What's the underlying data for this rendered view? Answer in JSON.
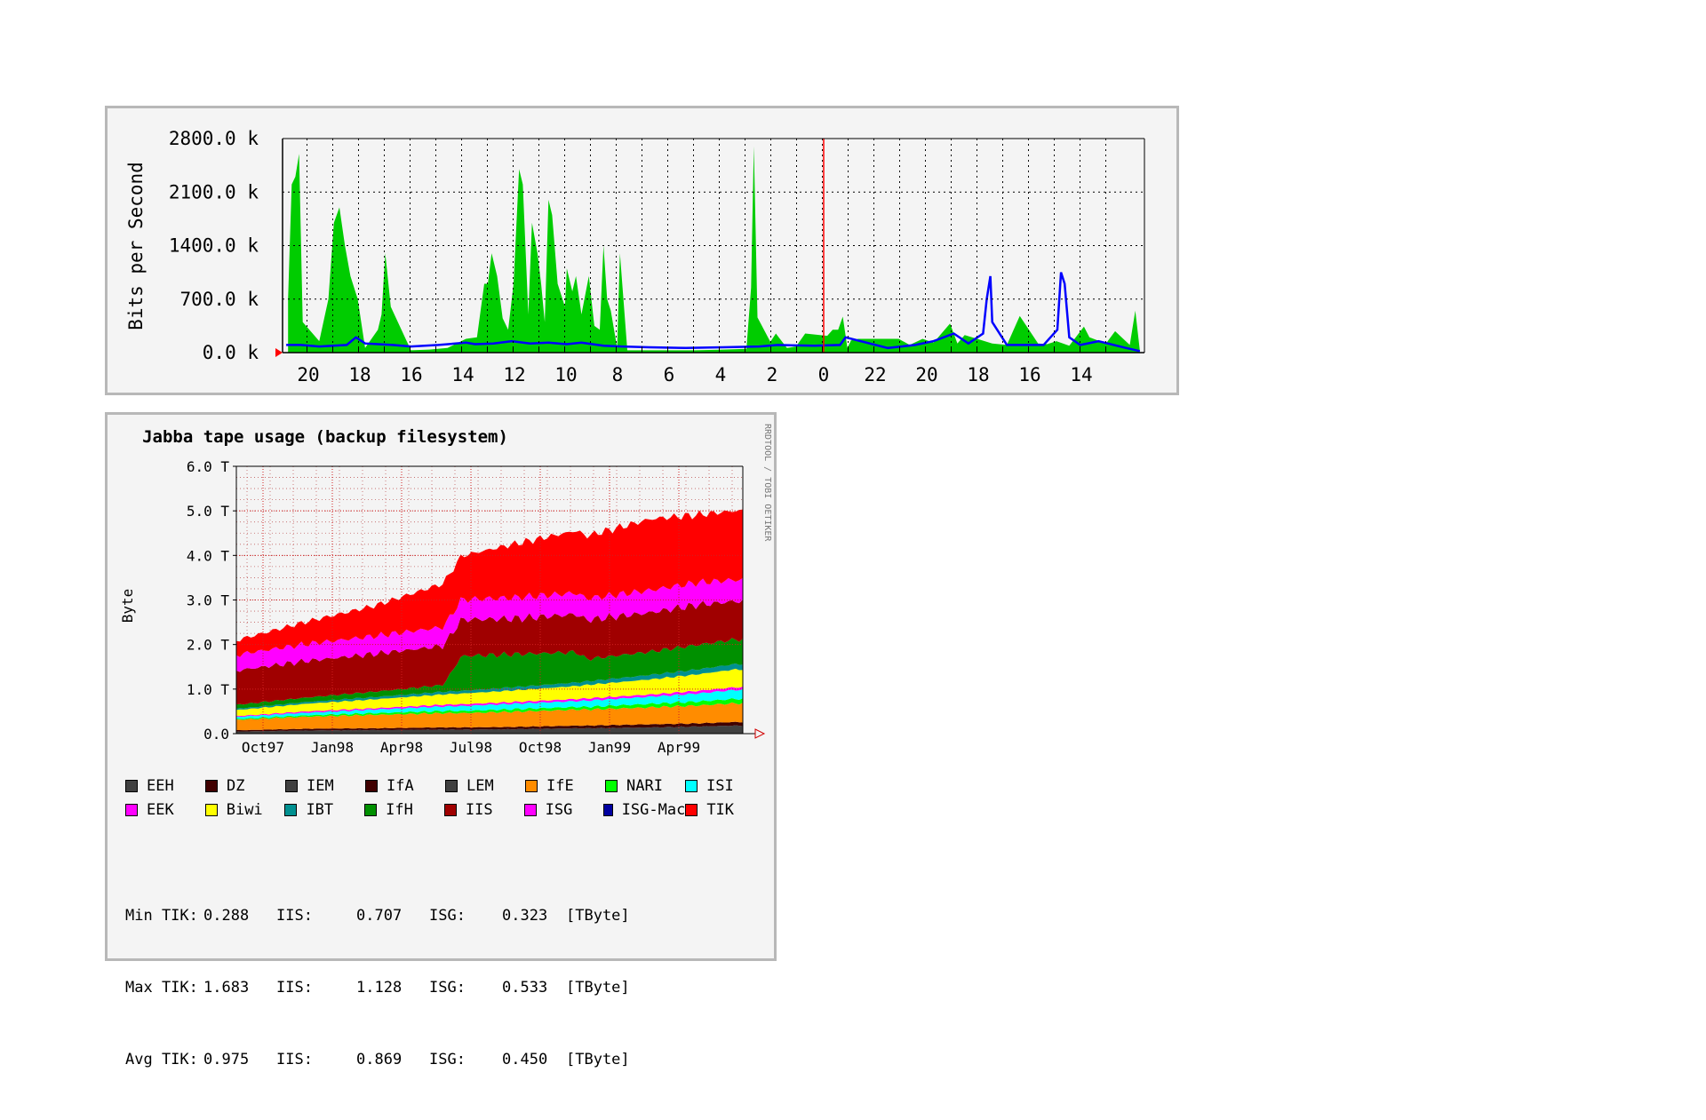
{
  "chart_data": [
    {
      "type": "area",
      "ylabel": "Bits per Second",
      "ylim": [
        0,
        2800
      ],
      "y_ticks": [
        "0.0 k",
        "700.0 k",
        "1400.0 k",
        "2100.0 k",
        "2800.0 k"
      ],
      "x_ticks": [
        "20",
        "18",
        "16",
        "14",
        "12",
        "10",
        "8",
        "6",
        "4",
        "2",
        "0",
        "22",
        "20",
        "18",
        "16",
        "14"
      ],
      "grid": true,
      "colors": {
        "in": "#00cc00",
        "out": "#0000ff",
        "now_marker": "#ff0000"
      },
      "series": [
        {
          "values": [
            [
              0.25,
              30
            ],
            [
              0.5,
              550
            ],
            [
              0.8,
              100
            ],
            [
              1.6,
              280
            ],
            [
              2.1,
              120
            ],
            [
              3.0,
              200
            ],
            [
              3.3,
              340
            ],
            [
              4.1,
              90
            ],
            [
              4.8,
              150
            ],
            [
              5.3,
              110
            ],
            [
              5.8,
              120
            ],
            [
              6.8,
              480
            ],
            [
              7.5,
              100
            ],
            [
              8.3,
              120
            ],
            [
              9.8,
              230
            ],
            [
              10.2,
              120
            ],
            [
              10.6,
              380
            ],
            [
              11.5,
              130
            ],
            [
              12.1,
              180
            ],
            [
              12.8,
              100
            ],
            [
              13.4,
              180
            ],
            [
              15.6,
              180
            ],
            [
              16.0,
              160
            ],
            [
              16.2,
              60
            ],
            [
              16.45,
              470
            ],
            [
              16.7,
              300
            ],
            [
              17.0,
              300
            ],
            [
              17.3,
              220
            ],
            [
              18.5,
              250
            ],
            [
              19.0,
              80
            ],
            [
              19.5,
              60
            ],
            [
              20.1,
              250
            ],
            [
              20.4,
              140
            ],
            [
              21.1,
              460
            ],
            [
              21.3,
              2700
            ],
            [
              21.45,
              850
            ],
            [
              21.7,
              50
            ],
            [
              23.0,
              40
            ],
            [
              24.5,
              30
            ],
            [
              26.0,
              30
            ],
            [
              27.0,
              30
            ],
            [
              28.2,
              30
            ],
            [
              28.6,
              1300
            ],
            [
              28.75,
              60
            ],
            [
              29.1,
              550
            ],
            [
              29.3,
              700
            ],
            [
              29.5,
              1400
            ],
            [
              29.7,
              300
            ],
            [
              30.0,
              350
            ],
            [
              30.3,
              1000
            ],
            [
              30.7,
              500
            ],
            [
              31.0,
              1000
            ],
            [
              31.2,
              800
            ],
            [
              31.5,
              1100
            ],
            [
              31.6,
              600
            ],
            [
              32.0,
              900
            ],
            [
              32.3,
              1800
            ],
            [
              32.5,
              2000
            ],
            [
              32.7,
              400
            ],
            [
              32.9,
              900
            ],
            [
              33.1,
              1300
            ],
            [
              33.4,
              1700
            ],
            [
              33.6,
              500
            ],
            [
              33.9,
              2200
            ],
            [
              34.1,
              2400
            ],
            [
              34.4,
              900
            ],
            [
              34.7,
              300
            ],
            [
              35.0,
              450
            ],
            [
              35.3,
              1000
            ],
            [
              35.6,
              1300
            ],
            [
              35.8,
              900
            ],
            [
              36.0,
              900
            ],
            [
              36.4,
              200
            ],
            [
              37.0,
              180
            ],
            [
              38.0,
              60
            ],
            [
              39.0,
              40
            ],
            [
              40.0,
              30
            ],
            [
              41.1,
              600
            ],
            [
              41.4,
              1300
            ],
            [
              41.6,
              500
            ],
            [
              41.8,
              300
            ],
            [
              42.5,
              60
            ],
            [
              42.9,
              700
            ],
            [
              43.3,
              1000
            ],
            [
              43.6,
              1400
            ],
            [
              43.9,
              1900
            ],
            [
              44.2,
              1700
            ],
            [
              44.5,
              700
            ],
            [
              45.0,
              150
            ],
            [
              45.9,
              400
            ],
            [
              46.1,
              2600
            ],
            [
              46.3,
              2300
            ],
            [
              46.5,
              2200
            ],
            [
              46.7,
              700
            ]
          ]
        },
        {
          "values": [
            [
              0.25,
              20
            ],
            [
              1.0,
              60
            ],
            [
              2.5,
              150
            ],
            [
              3.5,
              100
            ],
            [
              4.1,
              200
            ],
            [
              4.35,
              900
            ],
            [
              4.55,
              1050
            ],
            [
              4.75,
              300
            ],
            [
              5.5,
              100
            ],
            [
              7.5,
              100
            ],
            [
              8.3,
              400
            ],
            [
              8.4,
              1000
            ],
            [
              8.6,
              700
            ],
            [
              8.8,
              250
            ],
            [
              9.6,
              120
            ],
            [
              10.4,
              250
            ],
            [
              11.5,
              150
            ],
            [
              12.5,
              100
            ],
            [
              14.0,
              60
            ],
            [
              16.3,
              200
            ],
            [
              16.6,
              100
            ],
            [
              18.0,
              90
            ],
            [
              20.0,
              100
            ],
            [
              21.0,
              80
            ],
            [
              23.0,
              70
            ],
            [
              25.0,
              60
            ],
            [
              27.0,
              70
            ],
            [
              28.5,
              80
            ],
            [
              29.5,
              90
            ],
            [
              30.7,
              130
            ],
            [
              31.5,
              110
            ],
            [
              32.5,
              130
            ],
            [
              33.5,
              120
            ],
            [
              34.5,
              150
            ],
            [
              35.5,
              120
            ],
            [
              36.5,
              110
            ],
            [
              37.0,
              130
            ],
            [
              38.5,
              100
            ],
            [
              40.0,
              80
            ],
            [
              41.0,
              100
            ],
            [
              42.5,
              120
            ],
            [
              43.0,
              200
            ],
            [
              43.5,
              100
            ],
            [
              45.0,
              80
            ],
            [
              46.0,
              100
            ],
            [
              46.8,
              100
            ]
          ]
        }
      ]
    },
    {
      "type": "area",
      "title": "Jabba tape usage (backup filesystem)",
      "ylabel": "Byte",
      "ylim": [
        0,
        6
      ],
      "y_ticks": [
        "0.0",
        "1.0 T",
        "2.0 T",
        "3.0 T",
        "4.0 T",
        "5.0 T",
        "6.0 T"
      ],
      "categories": [
        "Oct97",
        "Jan98",
        "Apr98",
        "Jul98",
        "Oct98",
        "Jan99",
        "Apr99"
      ],
      "x_range": [
        "1997-10-01",
        "1999-07-31"
      ],
      "grid": true,
      "watermark": "RRDTOOL / TOBI OETIKER",
      "legend": [
        {
          "name": "EEH",
          "color": "#404040"
        },
        {
          "name": "DZ",
          "color": "#400000"
        },
        {
          "name": "IEM",
          "color": "#404040"
        },
        {
          "name": "IfA",
          "color": "#400000"
        },
        {
          "name": "LEM",
          "color": "#404040"
        },
        {
          "name": "IfE",
          "color": "#ff8c00"
        },
        {
          "name": "NARI",
          "color": "#00ff00"
        },
        {
          "name": "ISI",
          "color": "#00ffff"
        },
        {
          "name": "EEK",
          "color": "#ff00ff"
        },
        {
          "name": "Biwi",
          "color": "#ffff00"
        },
        {
          "name": "IBT",
          "color": "#009090"
        },
        {
          "name": "IfH",
          "color": "#009000"
        },
        {
          "name": "IIS",
          "color": "#a00000"
        },
        {
          "name": "ISG",
          "color": "#ff00ff"
        },
        {
          "name": "ISG-Mac",
          "color": "#0000a0"
        },
        {
          "name": "TIK",
          "color": "#ff0000"
        }
      ],
      "x": [
        "1997-09-01",
        "1997-10-15",
        "1998-01-01",
        "1998-04-01",
        "1998-07-01",
        "1998-07-25",
        "1998-10-01",
        "1998-12-25",
        "1999-01-05",
        "1999-04-01",
        "1999-06-01",
        "1999-07-20"
      ],
      "series": [
        {
          "name": "EEH",
          "values": [
            0.04,
            0.05,
            0.07,
            0.08,
            0.09,
            0.09,
            0.1,
            0.12,
            0.12,
            0.14,
            0.16,
            0.18
          ]
        },
        {
          "name": "DZ",
          "values": [
            0.03,
            0.03,
            0.04,
            0.04,
            0.05,
            0.05,
            0.05,
            0.06,
            0.06,
            0.07,
            0.07,
            0.08
          ]
        },
        {
          "name": "IfE",
          "values": [
            0.22,
            0.24,
            0.27,
            0.3,
            0.32,
            0.32,
            0.34,
            0.36,
            0.36,
            0.38,
            0.4,
            0.42
          ]
        },
        {
          "name": "NARI",
          "values": [
            0.02,
            0.02,
            0.03,
            0.04,
            0.05,
            0.05,
            0.06,
            0.06,
            0.06,
            0.08,
            0.09,
            0.1
          ]
        },
        {
          "name": "ISI",
          "values": [
            0.04,
            0.05,
            0.06,
            0.08,
            0.1,
            0.11,
            0.12,
            0.13,
            0.14,
            0.16,
            0.18,
            0.2
          ]
        },
        {
          "name": "EEK",
          "values": [
            0.02,
            0.02,
            0.03,
            0.03,
            0.04,
            0.04,
            0.04,
            0.05,
            0.05,
            0.05,
            0.06,
            0.06
          ]
        },
        {
          "name": "Biwi",
          "values": [
            0.12,
            0.14,
            0.17,
            0.2,
            0.23,
            0.24,
            0.26,
            0.29,
            0.3,
            0.34,
            0.37,
            0.4
          ]
        },
        {
          "name": "IBT",
          "values": [
            0.03,
            0.03,
            0.04,
            0.05,
            0.06,
            0.06,
            0.07,
            0.08,
            0.08,
            0.1,
            0.11,
            0.12
          ]
        },
        {
          "name": "IfH",
          "values": [
            0.08,
            0.09,
            0.1,
            0.12,
            0.15,
            0.78,
            0.74,
            0.68,
            0.5,
            0.52,
            0.55,
            0.55
          ]
        },
        {
          "name": "IIS",
          "values": [
            0.72,
            0.78,
            0.82,
            0.85,
            0.88,
            0.82,
            0.8,
            0.85,
            0.88,
            0.88,
            0.9,
            0.86
          ]
        },
        {
          "name": "ISG",
          "values": [
            0.32,
            0.36,
            0.38,
            0.4,
            0.42,
            0.45,
            0.47,
            0.48,
            0.48,
            0.5,
            0.5,
            0.48
          ]
        },
        {
          "name": "TIK",
          "values": [
            0.3,
            0.35,
            0.5,
            0.68,
            0.98,
            0.98,
            1.2,
            1.4,
            1.4,
            1.6,
            1.52,
            1.55
          ]
        }
      ]
    }
  ],
  "stats": {
    "unit": "[TByte]",
    "rows": [
      {
        "label": "Min TIK:",
        "tik": "0.288",
        "iis_label": "IIS:",
        "iis": "0.707",
        "isg_label": "ISG:",
        "isg": "0.323"
      },
      {
        "label": "Max TIK:",
        "tik": "1.683",
        "iis_label": "IIS:",
        "iis": "1.128",
        "isg_label": "ISG:",
        "isg": "0.533"
      },
      {
        "label": "Avg TIK:",
        "tik": "0.975",
        "iis_label": "IIS:",
        "iis": "0.869",
        "isg_label": "ISG:",
        "isg": "0.450"
      }
    ]
  }
}
